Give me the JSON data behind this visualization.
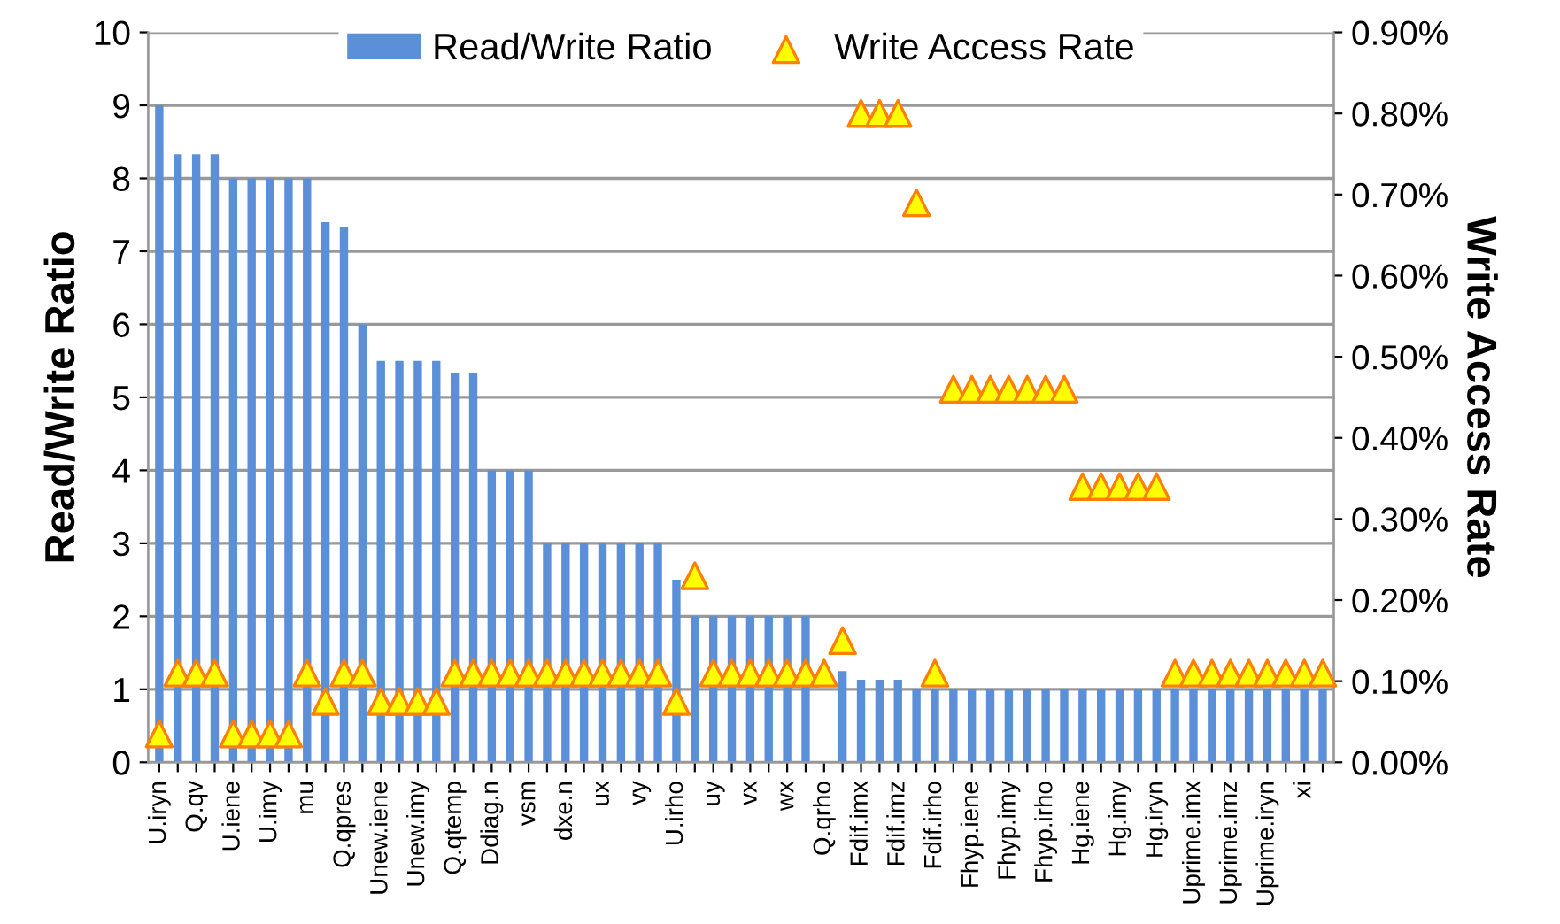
{
  "chart_data": {
    "type": "bar",
    "ylabel": "Read/Write Ratio",
    "y2label": "Write Access Rate",
    "categories": [
      "U.iryn",
      null,
      "Q.qv",
      null,
      "U.iene",
      null,
      "U.imy",
      null,
      "mu",
      null,
      "Q.qpres",
      null,
      "Unew.iene",
      null,
      "Unew.imy",
      null,
      "Q.qtemp",
      null,
      "Ddiag.n",
      null,
      "vsm",
      null,
      "dxe.n",
      null,
      "ux",
      null,
      "vy",
      null,
      "U.irho",
      null,
      "uy",
      null,
      "vx",
      null,
      "wx",
      null,
      "Q.qrho",
      null,
      "Fdif.imx",
      null,
      "Fdif.imz",
      null,
      "Fdif.irho",
      null,
      "Fhyp.iene",
      null,
      "Fhyp.imy",
      null,
      "Fhyp.irho",
      null,
      "Hg.iene",
      null,
      "Hg.imy",
      null,
      "Hg.iryn",
      null,
      "Uprime.imx",
      null,
      "Uprime.imz",
      null,
      "Uprime.iryn",
      null,
      "xi",
      null
    ],
    "series": [
      {
        "name": "Read/Write Ratio",
        "color": "#5b8fd8",
        "values": [
          9,
          8.33,
          8.33,
          8.33,
          8,
          8,
          8,
          8,
          8,
          7.4,
          7.33,
          6,
          5.5,
          5.5,
          5.5,
          5.5,
          5.33,
          5.33,
          4,
          4,
          4,
          3,
          3,
          3,
          3,
          3,
          3,
          3,
          2.5,
          2,
          2,
          2,
          2,
          2,
          2,
          2,
          null,
          1.25,
          1.13,
          1.13,
          1.13,
          1,
          1,
          1,
          1,
          1,
          1,
          1,
          1,
          1,
          1,
          1,
          1,
          1,
          1,
          1,
          1,
          1,
          1,
          1,
          1,
          1,
          1,
          1
        ]
      },
      {
        "name": "Write Access Rate",
        "type": "scatter",
        "axis": "y2",
        "color": "#ffff00",
        "marker": "triangle",
        "values": [
          0.035,
          0.11,
          0.11,
          0.11,
          0.035,
          0.035,
          0.035,
          0.035,
          0.11,
          0.075,
          0.11,
          0.11,
          0.075,
          0.075,
          0.075,
          0.075,
          0.11,
          0.11,
          0.11,
          0.11,
          0.11,
          0.11,
          0.11,
          0.11,
          0.11,
          0.11,
          0.11,
          0.11,
          0.075,
          0.23,
          0.11,
          0.11,
          0.11,
          0.11,
          0.11,
          0.11,
          0.11,
          0.15,
          0.8,
          0.8,
          0.8,
          0.69,
          0.11,
          0.46,
          0.46,
          0.46,
          0.46,
          0.46,
          0.46,
          0.46,
          0.34,
          0.34,
          0.34,
          0.34,
          0.34,
          0.11,
          0.11,
          0.11,
          0.11,
          0.11,
          0.11,
          0.11,
          0.11,
          0.11
        ]
      }
    ],
    "ylim": [
      0,
      10
    ],
    "yticks": [
      0,
      1,
      2,
      3,
      4,
      5,
      6,
      7,
      8,
      9,
      10
    ],
    "y2lim": [
      0,
      0.9
    ],
    "y2ticks": [
      {
        "value": 0,
        "label": "0.00%"
      },
      {
        "value": 0.1,
        "label": "0.10%"
      },
      {
        "value": 0.2,
        "label": "0.20%"
      },
      {
        "value": 0.3,
        "label": "0.30%"
      },
      {
        "value": 0.4,
        "label": "0.40%"
      },
      {
        "value": 0.5,
        "label": "0.50%"
      },
      {
        "value": 0.6,
        "label": "0.60%"
      },
      {
        "value": 0.7,
        "label": "0.70%"
      },
      {
        "value": 0.8,
        "label": "0.80%"
      },
      {
        "value": 0.9,
        "label": "0.90%"
      }
    ],
    "grid": "y",
    "legend": "top"
  }
}
